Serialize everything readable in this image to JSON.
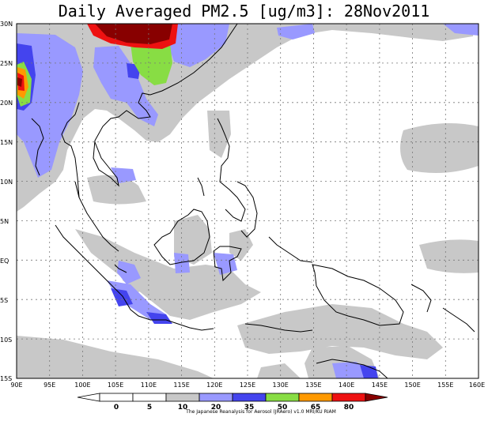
{
  "title": "Daily Averaged PM2.5 [ug/m3]: 28Nov2011",
  "credit": "The Japanese Reanalysis for Aerosol (JRAero) v1.0 MRI/KU RIAM",
  "map": {
    "lon_range": [
      90,
      160
    ],
    "lat_range": [
      -15,
      30
    ],
    "lon_ticks": [
      "90E",
      "95E",
      "100E",
      "105E",
      "110E",
      "115E",
      "120E",
      "125E",
      "130E",
      "135E",
      "140E",
      "145E",
      "150E",
      "155E",
      "160E"
    ],
    "lat_ticks": [
      "30N",
      "25N",
      "20N",
      "15N",
      "10N",
      "5N",
      "EQ",
      "5S",
      "10S",
      "15S"
    ],
    "grid": true
  },
  "legend": {
    "labels": [
      "0",
      "5",
      "10",
      "20",
      "35",
      "50",
      "65",
      "80"
    ],
    "colors": [
      "#ffffff",
      "#ffffff",
      "#c8c8c8",
      "#9999ff",
      "#4444ee",
      "#88dd44",
      "#ff9900",
      "#ee1111",
      "#880000"
    ]
  }
}
